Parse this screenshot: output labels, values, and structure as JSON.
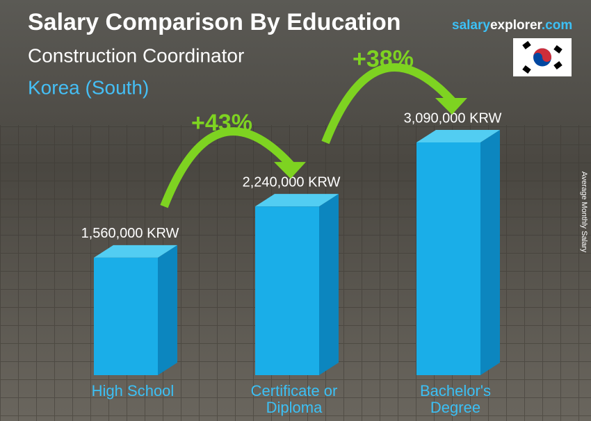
{
  "chart_data": {
    "type": "bar3d",
    "title": "Salary Comparison By Education",
    "subtitle": "Construction Coordinator",
    "location": "Korea (South)",
    "brand": [
      "salary",
      "explorer",
      ".com"
    ],
    "ylabel": "Average Monthly Salary",
    "categories": [
      "High School",
      "Certificate or Diploma",
      "Bachelor's Degree"
    ],
    "values": [
      1560000,
      2240000,
      3090000
    ],
    "value_labels": [
      "1,560,000 KRW",
      "2,240,000 KRW",
      "3,090,000 KRW"
    ],
    "color": "#1aaee8",
    "annotations": [
      "+43%",
      "+38%"
    ],
    "annotation_color": "#7ed321"
  }
}
